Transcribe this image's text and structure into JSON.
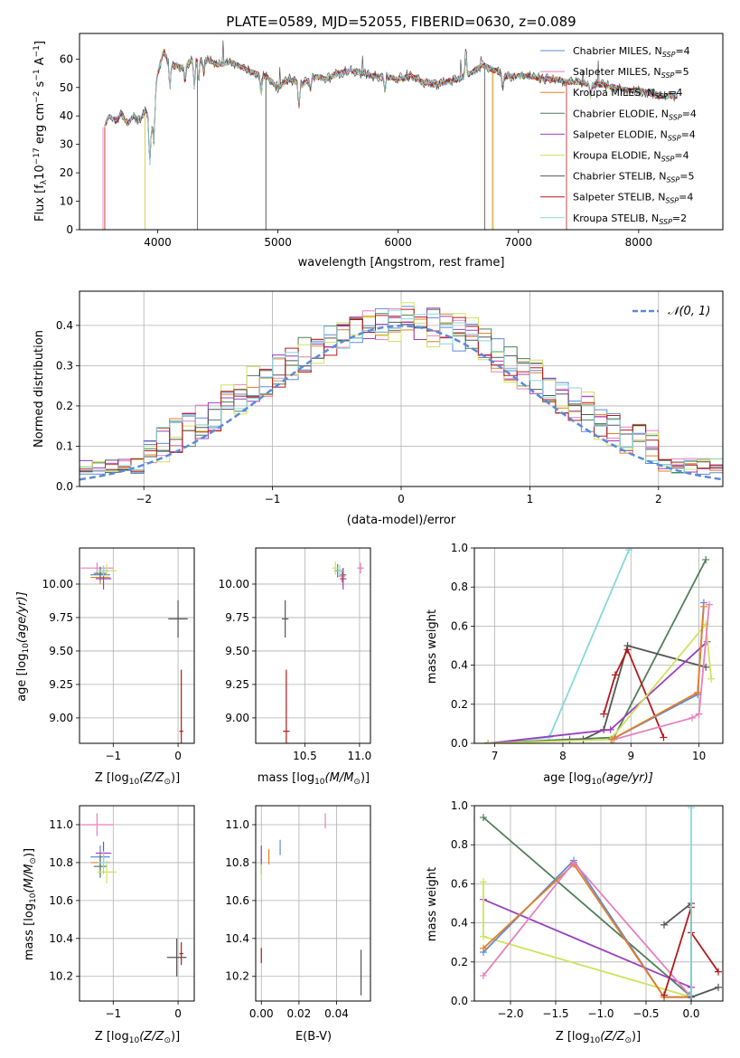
{
  "colors": {
    "Chabrier MILES": "#5b8bd9",
    "Salpeter MILES": "#e87fbf",
    "Kroupa MILES": "#e67e22",
    "Chabrier ELODIE": "#4f7f59",
    "Salpeter ELODIE": "#9b3fbf",
    "Kroupa ELODIE": "#cfe35b",
    "Chabrier STELIB": "#555555",
    "Salpeter STELIB": "#b51a1a",
    "Kroupa STELIB": "#86d8dc",
    "normal": "#5b8bd9",
    "grid": "#b0b0b0"
  },
  "spectrum": {
    "title": "PLATE=0589, MJD=52055, FIBERID=0630, z=0.089",
    "xlabel": "wavelength [Angstrom, rest frame]",
    "ylabel_main": "Flux [f",
    "ylabel_sub": "λ",
    "ylabel_rest": "10",
    "ylabel_exp1": "−17",
    "ylabel_unit": " erg cm",
    "ylabel_exp2": "−2",
    "ylabel_s": " s",
    "ylabel_exp3": "−1",
    "ylabel_A": " A",
    "ylabel_exp4": "−1",
    "ylabel_close": "]",
    "xticks": [
      "4000",
      "5000",
      "6000",
      "7000",
      "8000"
    ],
    "yticks": [
      "0",
      "10",
      "20",
      "30",
      "40",
      "50",
      "60"
    ],
    "legend": [
      {
        "pre": "Chabrier MILES, N",
        "sub": "SSP",
        "post": "=4"
      },
      {
        "pre": "Salpeter MILES, N",
        "sub": "SSP",
        "post": "=5"
      },
      {
        "pre": "Kroupa MILES, N",
        "sub": "SSP",
        "post": "=4"
      },
      {
        "pre": "Chabrier ELODIE, N",
        "sub": "SSP",
        "post": "=4"
      },
      {
        "pre": "Salpeter ELODIE, N",
        "sub": "SSP",
        "post": "=4"
      },
      {
        "pre": "Kroupa ELODIE, N",
        "sub": "SSP",
        "post": "=4"
      },
      {
        "pre": "Chabrier STELIB, N",
        "sub": "SSP",
        "post": "=5"
      },
      {
        "pre": "Salpeter STELIB, N",
        "sub": "SSP",
        "post": "=4"
      },
      {
        "pre": "Kroupa STELIB, N",
        "sub": "SSP",
        "post": "=2"
      }
    ]
  },
  "histogram": {
    "ylabel": "Normed distribution",
    "xlabel": "(data-model)/error",
    "legend": "𝒩(0, 1)",
    "xticks": [
      "−2",
      "−1",
      "0",
      "1",
      "2"
    ],
    "yticks": [
      "0.0",
      "0.1",
      "0.2",
      "0.3",
      "0.4"
    ]
  },
  "panels": {
    "age_z": {
      "xlabel_pre": "Z [log",
      "xlabel_sub": "10",
      "xlabel_post": "(Z/Z",
      "xlabel_sun": "⊙",
      "xlabel_end": ")]",
      "ylabel_pre": "age  [log",
      "ylabel_sub": "10",
      "ylabel_post": "(age/yr)]",
      "xticks": [
        "−1",
        "0"
      ],
      "yticks": [
        "9.00",
        "9.25",
        "9.50",
        "9.75",
        "10.00"
      ]
    },
    "age_mass": {
      "xlabel_pre": "mass [log",
      "xlabel_sub": "10",
      "xlabel_post": "(M/M",
      "xlabel_sun": "⊙",
      "xlabel_end": ")]",
      "xticks": [
        "10.5",
        "11.0"
      ],
      "yticks": [
        "9.00",
        "9.25",
        "9.50",
        "9.75",
        "10.00"
      ]
    },
    "weight_age": {
      "xlabel_pre": "age  [log",
      "xlabel_sub": "10",
      "xlabel_post": "(age/yr)]",
      "ylabel": "mass weight",
      "xticks": [
        "7",
        "8",
        "9",
        "10"
      ],
      "yticks": [
        "0.0",
        "0.2",
        "0.4",
        "0.6",
        "0.8",
        "1.0"
      ]
    },
    "mass_z": {
      "xlabel_pre": "Z [log",
      "xlabel_sub": "10",
      "xlabel_post": "(Z/Z",
      "xlabel_sun": "⊙",
      "xlabel_end": ")]",
      "ylabel_pre": "mass [log",
      "ylabel_sub": "10",
      "ylabel_post": "(M/M",
      "ylabel_sun": "⊙",
      "ylabel_end": ")]",
      "xticks": [
        "−1",
        "0"
      ],
      "yticks": [
        "10.2",
        "10.4",
        "10.6",
        "10.8",
        "11.0"
      ]
    },
    "mass_ebv": {
      "xlabel": "E(B-V)",
      "xticks": [
        "0.00",
        "0.02",
        "0.04"
      ],
      "yticks": [
        "10.2",
        "10.4",
        "10.6",
        "10.8",
        "11.0"
      ]
    },
    "weight_z": {
      "xlabel_pre": "Z [log",
      "xlabel_sub": "10",
      "xlabel_post": "(Z/Z",
      "xlabel_sun": "⊙",
      "xlabel_end": ")]",
      "ylabel": "mass weight",
      "xticks": [
        "−2.0",
        "−1.5",
        "−1.0",
        "−0.5",
        "0.0"
      ],
      "yticks": [
        "0.0",
        "0.2",
        "0.4",
        "0.6",
        "0.8",
        "1.0"
      ]
    }
  },
  "chart_data": [
    {
      "type": "line",
      "title": "PLATE=0589, MJD=52055, FIBERID=0630, z=0.089",
      "xlim": [
        3350,
        8700
      ],
      "ylim": [
        0,
        69
      ],
      "x": [
        3550,
        3600,
        3650,
        3700,
        3750,
        3800,
        3850,
        3900,
        3950,
        4000,
        4050,
        4100,
        4200,
        4300,
        4400,
        4500,
        4600,
        4700,
        4800,
        4900,
        5000,
        5100,
        5200,
        5300,
        5400,
        5500,
        5600,
        5700,
        5800,
        5900,
        6000,
        6100,
        6200,
        6300,
        6400,
        6500,
        6600,
        6700,
        6800,
        6900,
        7000,
        7100,
        7200,
        7300,
        7400,
        7500,
        7600,
        7700,
        7800,
        7900,
        8000,
        8100,
        8200,
        8300
      ],
      "y": [
        36,
        40,
        38,
        41,
        37,
        40,
        38,
        42,
        35,
        55,
        63,
        58,
        57,
        60,
        60,
        58,
        59,
        57,
        55,
        54,
        50,
        53,
        51,
        54,
        53,
        55,
        56,
        55,
        54,
        54,
        53,
        54,
        52,
        51,
        52,
        53,
        55,
        58,
        56,
        54,
        54,
        54,
        53,
        53,
        52,
        52,
        51,
        51,
        50,
        49,
        49,
        48,
        47,
        47
      ],
      "series": [
        {
          "name": "Chabrier MILES, NSSP=4"
        },
        {
          "name": "Salpeter MILES, NSSP=5"
        },
        {
          "name": "Kroupa MILES, NSSP=4"
        },
        {
          "name": "Chabrier ELODIE, NSSP=4"
        },
        {
          "name": "Salpeter ELODIE, NSSP=4"
        },
        {
          "name": "Kroupa ELODIE, NSSP=4"
        },
        {
          "name": "Chabrier STELIB, NSSP=5"
        },
        {
          "name": "Salpeter STELIB, NSSP=4"
        },
        {
          "name": "Kroupa STELIB, NSSP=2"
        }
      ]
    },
    {
      "type": "line",
      "xlim": [
        -2.5,
        2.5
      ],
      "ylim": [
        0,
        0.485
      ],
      "bin_width": 0.1,
      "series": [
        {
          "name": "𝒩(0, 1)",
          "style": "dashed"
        }
      ]
    },
    {
      "type": "scatter",
      "xlim": [
        -1.52,
        0.25
      ],
      "ylim": [
        8.81,
        10.27
      ],
      "points": [
        {
          "model": "Chabrier MILES",
          "x": -1.2,
          "y": 10.07,
          "xerr": 0.15,
          "yerr": 0.05
        },
        {
          "model": "Salpeter MILES",
          "x": -1.25,
          "y": 10.12,
          "xerr": 0.25,
          "yerr": 0.04
        },
        {
          "model": "Kroupa MILES",
          "x": -1.2,
          "y": 10.05,
          "xerr": 0.15,
          "yerr": 0.05
        },
        {
          "model": "Chabrier ELODIE",
          "x": -1.2,
          "y": 10.08,
          "xerr": 0.1,
          "yerr": 0.05
        },
        {
          "model": "Salpeter ELODIE",
          "x": -1.15,
          "y": 10.04,
          "xerr": 0.12,
          "yerr": 0.08
        },
        {
          "model": "Kroupa ELODIE",
          "x": -1.1,
          "y": 10.1,
          "xerr": 0.15,
          "yerr": 0.05
        },
        {
          "model": "Chabrier STELIB",
          "x": 0.0,
          "y": 9.74,
          "xerr": 0.15,
          "yerr": 0.14
        },
        {
          "model": "Salpeter STELIB",
          "x": 0.05,
          "y": 8.9,
          "xerr": 0.03,
          "yerr": 0.46
        },
        {
          "model": "Kroupa STELIB",
          "x": -1.15,
          "y": 10.1,
          "xerr": 0.08,
          "yerr": 0.04
        }
      ]
    },
    {
      "type": "scatter",
      "xlim": [
        10.05,
        11.1
      ],
      "ylim": [
        8.81,
        10.27
      ],
      "points": [
        {
          "model": "Chabrier MILES",
          "x": 10.85,
          "y": 10.07
        },
        {
          "model": "Salpeter MILES",
          "x": 11.01,
          "y": 10.12
        },
        {
          "model": "Kroupa MILES",
          "x": 10.84,
          "y": 10.06
        },
        {
          "model": "Chabrier ELODIE",
          "x": 10.8,
          "y": 10.1
        },
        {
          "model": "Salpeter ELODIE",
          "x": 10.85,
          "y": 10.04
        },
        {
          "model": "Kroupa ELODIE",
          "x": 10.78,
          "y": 10.12
        },
        {
          "model": "Chabrier STELIB",
          "x": 10.32,
          "y": 9.74
        },
        {
          "model": "Salpeter STELIB",
          "x": 10.33,
          "y": 8.9
        },
        {
          "model": "Kroupa STELIB",
          "x": 10.82,
          "y": 10.1
        }
      ]
    },
    {
      "type": "line",
      "xlim": [
        6.7,
        10.35
      ],
      "ylim": [
        0,
        1.0
      ],
      "series": [
        {
          "model": "Kroupa STELIB",
          "x": [
            6.9,
            7.8,
            8.97
          ],
          "y": [
            0.0,
            0.03,
            0.99
          ]
        },
        {
          "model": "Chabrier ELODIE",
          "x": [
            6.9,
            8.1,
            8.75,
            10.1
          ],
          "y": [
            0.0,
            0.02,
            0.03,
            0.94
          ]
        },
        {
          "model": "Chabrier STELIB",
          "x": [
            6.9,
            8.3,
            8.6,
            8.95,
            10.1
          ],
          "y": [
            0.0,
            0.02,
            0.07,
            0.5,
            0.39
          ]
        },
        {
          "model": "Salpeter STELIB",
          "x": [
            8.6,
            8.77,
            8.95,
            9.48
          ],
          "y": [
            0.15,
            0.35,
            0.48,
            0.03
          ]
        },
        {
          "model": "Salpeter ELODIE",
          "x": [
            6.9,
            8.7,
            10.12
          ],
          "y": [
            0.0,
            0.07,
            0.52
          ]
        },
        {
          "model": "Kroupa ELODIE",
          "x": [
            6.9,
            8.7,
            10.1,
            10.18
          ],
          "y": [
            0.0,
            0.02,
            0.61,
            0.33
          ]
        },
        {
          "model": "Salpeter MILES",
          "x": [
            8.75,
            9.9,
            10.0,
            10.15
          ],
          "y": [
            0.02,
            0.13,
            0.15,
            0.71
          ]
        },
        {
          "model": "Chabrier MILES",
          "x": [
            8.72,
            9.98,
            10.07
          ],
          "y": [
            0.02,
            0.25,
            0.72
          ]
        },
        {
          "model": "Kroupa MILES",
          "x": [
            8.72,
            9.98,
            10.07
          ],
          "y": [
            0.02,
            0.26,
            0.7
          ]
        }
      ]
    },
    {
      "type": "scatter",
      "xlim": [
        -1.52,
        0.25
      ],
      "ylim": [
        10.07,
        11.1
      ],
      "points": [
        {
          "model": "Chabrier MILES",
          "x": -1.2,
          "y": 10.83
        },
        {
          "model": "Salpeter MILES",
          "x": -1.25,
          "y": 11.0
        },
        {
          "model": "Kroupa MILES",
          "x": -1.2,
          "y": 10.8
        },
        {
          "model": "Chabrier ELODIE",
          "x": -1.2,
          "y": 10.78
        },
        {
          "model": "Salpeter ELODIE",
          "x": -1.15,
          "y": 10.85
        },
        {
          "model": "Kroupa ELODIE",
          "x": -1.1,
          "y": 10.75
        },
        {
          "model": "Chabrier STELIB",
          "x": -0.02,
          "y": 10.3
        },
        {
          "model": "Salpeter STELIB",
          "x": 0.05,
          "y": 10.32
        },
        {
          "model": "Kroupa STELIB",
          "x": -1.15,
          "y": 10.8
        }
      ]
    },
    {
      "type": "scatter",
      "xlim": [
        -0.003,
        0.058
      ],
      "ylim": [
        10.07,
        11.1
      ],
      "points": [
        {
          "model": "Chabrier MILES",
          "x": 0.01,
          "y": 10.88
        },
        {
          "model": "Salpeter MILES",
          "x": 0.034,
          "y": 11.02
        },
        {
          "model": "Kroupa MILES",
          "x": 0.004,
          "y": 10.83
        },
        {
          "model": "Chabrier ELODIE",
          "x": 0.0,
          "y": 10.78
        },
        {
          "model": "Salpeter ELODIE",
          "x": 0.0,
          "y": 10.85
        },
        {
          "model": "Kroupa ELODIE",
          "x": 0.0,
          "y": 10.75
        },
        {
          "model": "Chabrier STELIB",
          "x": 0.053,
          "y": 10.22
        },
        {
          "model": "Salpeter STELIB",
          "x": 0.0,
          "y": 10.31
        }
      ]
    },
    {
      "type": "line",
      "xlim": [
        -2.4,
        0.35
      ],
      "ylim": [
        0,
        1.0
      ],
      "series": [
        {
          "model": "Chabrier ELODIE",
          "x": [
            -2.3,
            -0.02
          ],
          "y": [
            0.94,
            0.03
          ]
        },
        {
          "model": "Salpeter ELODIE",
          "x": [
            -2.3,
            0.0
          ],
          "y": [
            0.52,
            0.07
          ]
        },
        {
          "model": "Kroupa ELODIE",
          "x": [
            -2.3,
            -2.3,
            0.0
          ],
          "y": [
            0.61,
            0.33,
            0.02
          ]
        },
        {
          "model": "Chabrier MILES",
          "x": [
            -2.3,
            -1.3,
            -0.3,
            0.0
          ],
          "y": [
            0.25,
            0.72,
            0.02,
            0.02
          ]
        },
        {
          "model": "Kroupa MILES",
          "x": [
            -2.3,
            -1.3,
            -0.3,
            0.0
          ],
          "y": [
            0.27,
            0.7,
            0.02,
            0.02
          ]
        },
        {
          "model": "Salpeter MILES",
          "x": [
            -2.3,
            -1.3,
            0.0
          ],
          "y": [
            0.13,
            0.71,
            0.02
          ]
        },
        {
          "model": "Chabrier STELIB",
          "x": [
            -0.3,
            0.0,
            0.0,
            0.3
          ],
          "y": [
            0.39,
            0.5,
            0.02,
            0.07
          ]
        },
        {
          "model": "Salpeter STELIB",
          "x": [
            -0.3,
            0.0,
            0.0,
            0.3
          ],
          "y": [
            0.03,
            0.48,
            0.35,
            0.15
          ]
        },
        {
          "model": "Kroupa STELIB",
          "x": [
            0.0,
            0.0
          ],
          "y": [
            0.03,
            0.99
          ]
        }
      ]
    }
  ]
}
